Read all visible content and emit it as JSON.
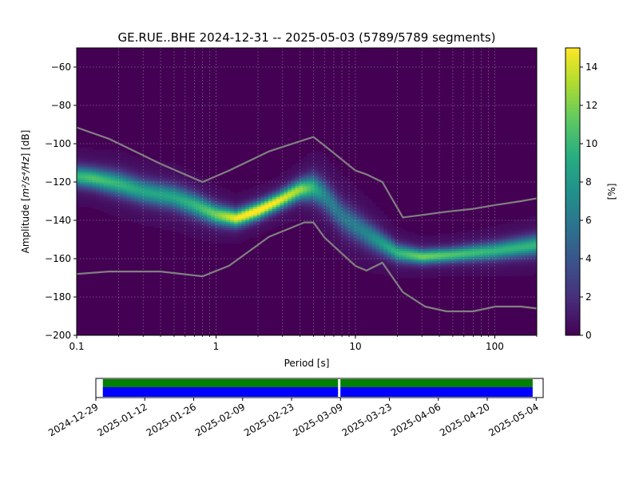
{
  "title": "GE.RUE..BHE   2024-12-31 -- 2025-05-03  (5789/5789 segments)",
  "chart_data": [
    {
      "type": "heatmap",
      "title": "GE.RUE..BHE   2024-12-31 -- 2025-05-03  (5789/5789 segments)",
      "xlabel": "Period [s]",
      "ylabel_prefix": "Amplitude [",
      "ylabel_math": "m²/s⁴/Hz",
      "ylabel_suffix": "] [dB]",
      "x_scale": "log",
      "xlim": [
        0.1,
        200
      ],
      "ylim": [
        -200,
        -50
      ],
      "x_ticks": [
        {
          "value": 0.1,
          "label": "0.1"
        },
        {
          "value": 1,
          "label": "1"
        },
        {
          "value": 10,
          "label": "10"
        },
        {
          "value": 100,
          "label": "100"
        }
      ],
      "y_ticks": [
        {
          "value": -60,
          "label": "−60"
        },
        {
          "value": -80,
          "label": "−80"
        },
        {
          "value": -100,
          "label": "−100"
        },
        {
          "value": -120,
          "label": "−120"
        },
        {
          "value": -140,
          "label": "−140"
        },
        {
          "value": -160,
          "label": "−160"
        },
        {
          "value": -180,
          "label": "−180"
        },
        {
          "value": -200,
          "label": "−200"
        }
      ],
      "grid": true,
      "colormap": "viridis",
      "background_color": "#440154",
      "model_line_color": "#808080",
      "colorbar": {
        "label": "[%]",
        "range": [
          0,
          15
        ],
        "ticks": [
          {
            "value": 0,
            "label": "0"
          },
          {
            "value": 2,
            "label": "2"
          },
          {
            "value": 4,
            "label": "4"
          },
          {
            "value": 6,
            "label": "6"
          },
          {
            "value": 8,
            "label": "8"
          },
          {
            "value": 10,
            "label": "10"
          },
          {
            "value": 12,
            "label": "12"
          },
          {
            "value": 14,
            "label": "14"
          }
        ]
      },
      "density_ridge": [
        {
          "period": 0.1,
          "db": -117,
          "width": 3.5,
          "peak": 9
        },
        {
          "period": 0.13,
          "db": -118,
          "width": 3.5,
          "peak": 10
        },
        {
          "period": 0.2,
          "db": -121,
          "width": 4,
          "peak": 9
        },
        {
          "period": 0.3,
          "db": -125,
          "width": 4,
          "peak": 8
        },
        {
          "period": 0.5,
          "db": -128,
          "width": 4,
          "peak": 8
        },
        {
          "period": 0.7,
          "db": -132,
          "width": 4,
          "peak": 9
        },
        {
          "period": 1.0,
          "db": -137,
          "width": 3.5,
          "peak": 11
        },
        {
          "period": 1.4,
          "db": -139,
          "width": 3,
          "peak": 14
        },
        {
          "period": 2.0,
          "db": -135,
          "width": 3,
          "peak": 15
        },
        {
          "period": 2.8,
          "db": -130,
          "width": 3,
          "peak": 14
        },
        {
          "period": 4.0,
          "db": -124,
          "width": 3.5,
          "peak": 12
        },
        {
          "period": 5.0,
          "db": -123,
          "width": 4.5,
          "peak": 9
        },
        {
          "period": 6.0,
          "db": -127,
          "width": 5,
          "peak": 6
        },
        {
          "period": 8.0,
          "db": -138,
          "width": 5,
          "peak": 5
        },
        {
          "period": 12.0,
          "db": -147,
          "width": 4.5,
          "peak": 6
        },
        {
          "period": 20.0,
          "db": -157,
          "width": 3,
          "peak": 9
        },
        {
          "period": 30.0,
          "db": -159,
          "width": 2.5,
          "peak": 11
        },
        {
          "period": 50.0,
          "db": -158,
          "width": 2.5,
          "peak": 10
        },
        {
          "period": 100.0,
          "db": -156,
          "width": 3,
          "peak": 9
        },
        {
          "period": 200.0,
          "db": -153,
          "width": 3.5,
          "peak": 9
        }
      ],
      "noise_models": [
        {
          "points": [
            [
              0.1,
              -91.5
            ],
            [
              0.17,
              -97.4
            ],
            [
              0.4,
              -110.5
            ],
            [
              0.8,
              -120
            ],
            [
              1.24,
              -114
            ],
            [
              2.4,
              -104
            ],
            [
              4.3,
              -98
            ],
            [
              5.0,
              -96.5
            ],
            [
              6.0,
              -101
            ],
            [
              10.0,
              -114
            ],
            [
              12.0,
              -116
            ],
            [
              15.6,
              -120
            ],
            [
              21.9,
              -138.5
            ],
            [
              31.6,
              -137
            ],
            [
              45.0,
              -135.5
            ],
            [
              70.0,
              -134
            ],
            [
              101.0,
              -132
            ],
            [
              154.0,
              -130
            ],
            [
              200.0,
              -128.5
            ]
          ]
        },
        {
          "points": [
            [
              0.1,
              -168
            ],
            [
              0.17,
              -166.7
            ],
            [
              0.4,
              -166.7
            ],
            [
              0.8,
              -169.2
            ],
            [
              1.24,
              -163.7
            ],
            [
              2.4,
              -148.6
            ],
            [
              4.3,
              -141.1
            ],
            [
              5.0,
              -141.1
            ],
            [
              6.0,
              -149
            ],
            [
              10.0,
              -163.8
            ],
            [
              12.0,
              -166.2
            ],
            [
              15.6,
              -162.1
            ],
            [
              21.9,
              -177.5
            ],
            [
              31.6,
              -185
            ],
            [
              45.0,
              -187.5
            ],
            [
              70.0,
              -187.5
            ],
            [
              101.0,
              -185
            ],
            [
              154.0,
              -185
            ],
            [
              200.0,
              -186
            ]
          ]
        }
      ]
    },
    {
      "type": "timeline",
      "date_range": [
        "2024-12-29",
        "2025-05-06"
      ],
      "tick_labels": [
        "2024-12-29",
        "2025-01-12",
        "2025-01-26",
        "2025-02-09",
        "2025-02-23",
        "2025-03-09",
        "2025-03-23",
        "2025-04-06",
        "2025-04-20",
        "2025-05-04"
      ],
      "coverage_color": "#0000ff",
      "segment_color": "#008000",
      "coverage": [
        [
          "2024-12-31",
          "2025-05-03"
        ]
      ],
      "gaps": [
        [
          "2025-03-08",
          "2025-03-09"
        ]
      ]
    }
  ]
}
